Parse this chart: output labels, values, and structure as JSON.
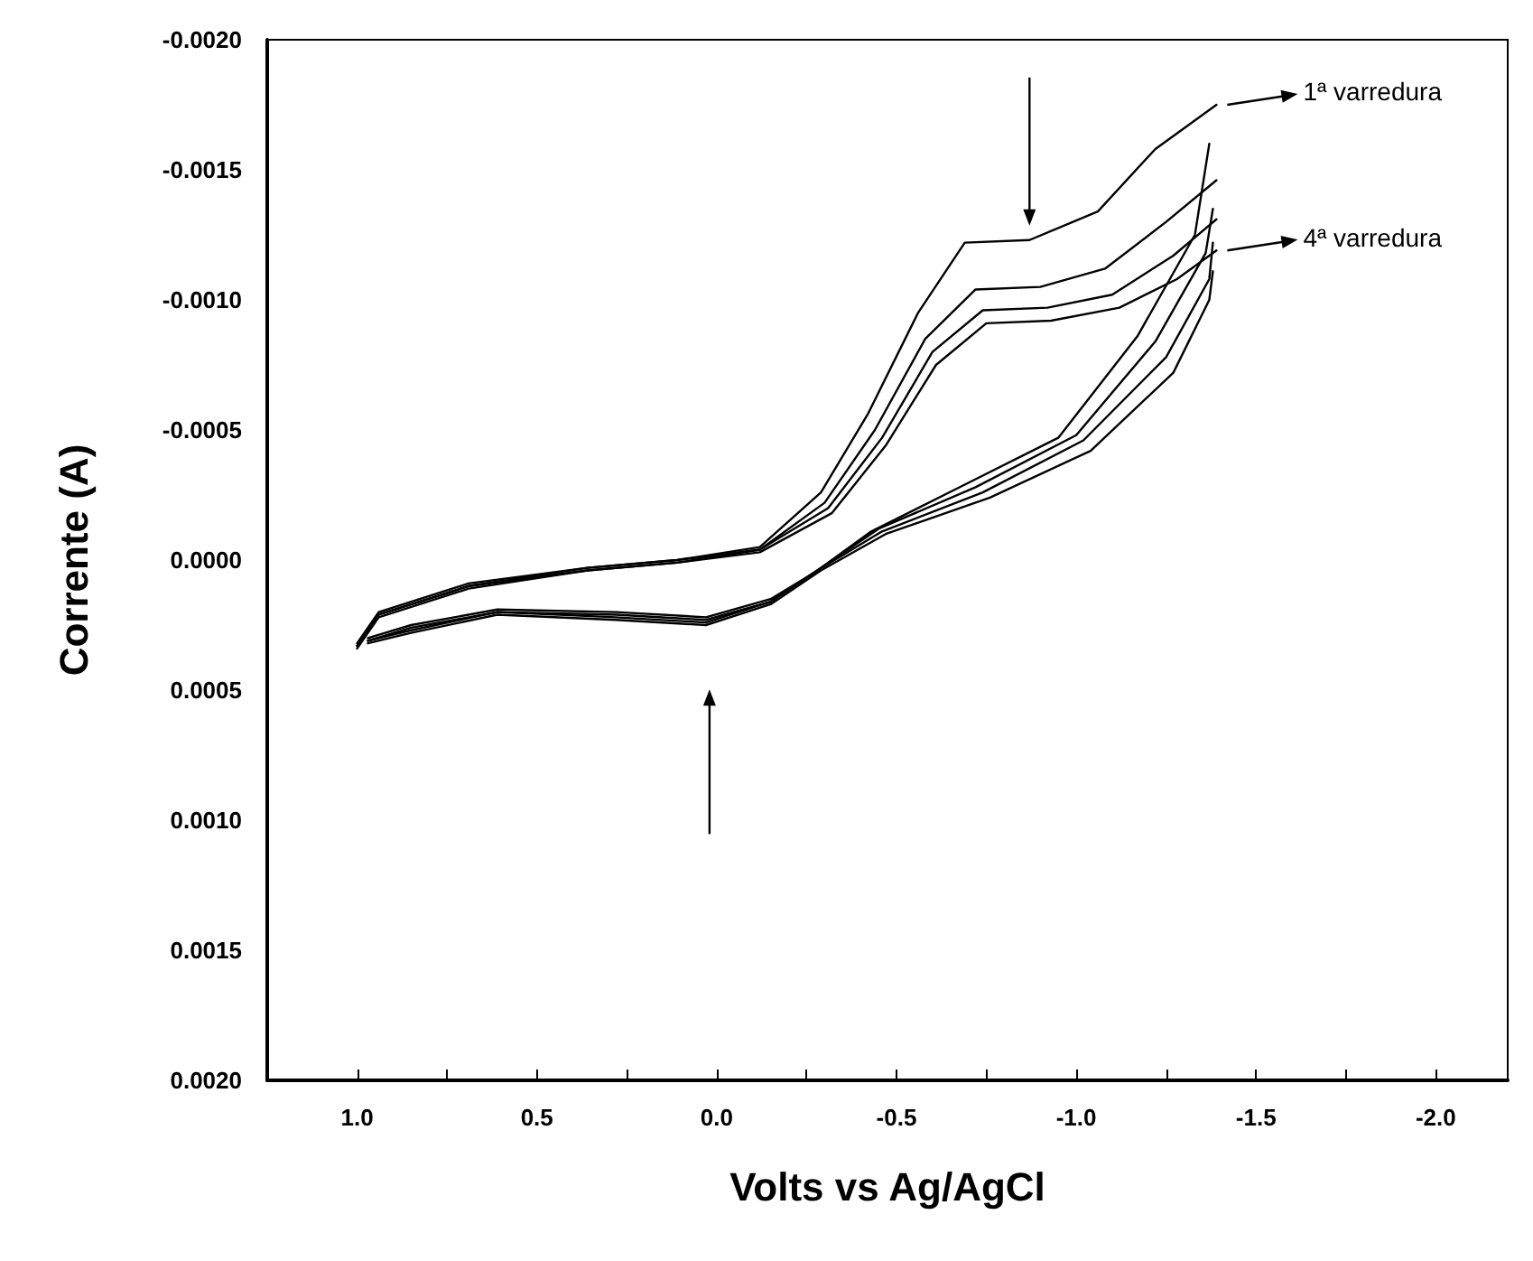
{
  "chart_data": {
    "type": "line",
    "xlabel": "Volts vs Ag/AgCl",
    "ylabel": "Corrente (A)",
    "xlim": [
      1.25,
      -2.2
    ],
    "ylim": [
      0.002,
      -0.002
    ],
    "xticks": [
      {
        "value": 1.0,
        "label": "1.0"
      },
      {
        "value": 0.75,
        "label": null
      },
      {
        "value": 0.5,
        "label": "0.5"
      },
      {
        "value": 0.25,
        "label": null
      },
      {
        "value": 0.0,
        "label": "0.0"
      },
      {
        "value": -0.25,
        "label": null
      },
      {
        "value": -0.5,
        "label": "-0.5"
      },
      {
        "value": -0.75,
        "label": null
      },
      {
        "value": -1.0,
        "label": "-1.0"
      },
      {
        "value": -1.25,
        "label": null
      },
      {
        "value": -1.5,
        "label": "-1.5"
      },
      {
        "value": -1.75,
        "label": null
      },
      {
        "value": -2.0,
        "label": "-2.0"
      }
    ],
    "yticks": [
      {
        "value": -0.002,
        "label": "-0.0020"
      },
      {
        "value": -0.0015,
        "label": "-0.0015"
      },
      {
        "value": -0.001,
        "label": "-0.0010"
      },
      {
        "value": -0.0005,
        "label": "-0.0005"
      },
      {
        "value": 0,
        "label": "0.0000"
      },
      {
        "value": 0.0005,
        "label": "0.0005"
      },
      {
        "value": 0.001,
        "label": "0.0010"
      },
      {
        "value": 0.0015,
        "label": "0.0015"
      },
      {
        "value": 0.002,
        "label": "0.0020"
      }
    ],
    "grid": false,
    "marker": "none",
    "line_style": "solid",
    "annotations": [
      "1ª varredura",
      "4ª varredura"
    ],
    "series": [
      {
        "color": "#000000",
        "x": [
          1.0,
          0.94,
          0.69,
          0.36,
          0.11,
          -0.12,
          -0.29,
          -0.42,
          -0.56,
          -0.69,
          -0.87,
          -1.06,
          -1.22,
          -1.39
        ],
        "values": [
          0.00032,
          0.0002,
          9e-05,
          3e-05,
          0.0,
          -5e-05,
          -0.00026,
          -0.00056,
          -0.00095,
          -0.00122,
          -0.00123,
          -0.00134,
          -0.00158,
          -0.00175
        ]
      },
      {
        "color": "#000000",
        "x": [
          -1.37,
          -1.33,
          -1.17,
          -0.95,
          -0.69,
          -0.43,
          -0.27,
          -0.15,
          0.03,
          0.28,
          0.61,
          0.85,
          0.97
        ],
        "values": [
          -0.0016,
          -0.00125,
          -0.00086,
          -0.00047,
          -0.00029,
          -0.00011,
          5e-05,
          0.00015,
          0.00022,
          0.0002,
          0.00019,
          0.00025,
          0.0003
        ]
      },
      {
        "color": "#000000",
        "x": [
          1.0,
          0.94,
          0.69,
          0.36,
          0.11,
          -0.12,
          -0.3,
          -0.44,
          -0.58,
          -0.72,
          -0.9,
          -1.08,
          -1.25,
          -1.39
        ],
        "values": [
          0.00033,
          0.00021,
          0.0001,
          3e-05,
          0.0,
          -4e-05,
          -0.00022,
          -0.0005,
          -0.00085,
          -0.00104,
          -0.00105,
          -0.00112,
          -0.0013,
          -0.00146
        ]
      },
      {
        "color": "#000000",
        "x": [
          -1.38,
          -1.36,
          -1.22,
          -1.0,
          -0.72,
          -0.45,
          -0.28,
          -0.15,
          0.03,
          0.28,
          0.61,
          0.85,
          0.97
        ],
        "values": [
          -0.00135,
          -0.00118,
          -0.00084,
          -0.00048,
          -0.00028,
          -0.00012,
          4e-05,
          0.00016,
          0.00023,
          0.00021,
          0.0002,
          0.00026,
          0.00031
        ]
      },
      {
        "color": "#000000",
        "x": [
          1.0,
          0.94,
          0.69,
          0.36,
          0.11,
          -0.12,
          -0.31,
          -0.46,
          -0.6,
          -0.74,
          -0.92,
          -1.1,
          -1.27,
          -1.39
        ],
        "values": [
          0.00033,
          0.00021,
          0.0001,
          4e-05,
          1e-05,
          -4e-05,
          -0.0002,
          -0.00047,
          -0.0008,
          -0.00096,
          -0.00097,
          -0.00102,
          -0.00117,
          -0.00131
        ]
      },
      {
        "color": "#000000",
        "x": [
          -1.38,
          -1.37,
          -1.25,
          -1.02,
          -0.74,
          -0.46,
          -0.28,
          -0.15,
          0.03,
          0.28,
          0.61,
          0.85,
          0.97
        ],
        "values": [
          -0.00122,
          -0.00108,
          -0.00078,
          -0.00046,
          -0.00026,
          -0.00011,
          4e-05,
          0.00016,
          0.00024,
          0.00022,
          0.0002,
          0.00027,
          0.00031
        ]
      },
      {
        "color": "#000000",
        "x": [
          1.0,
          0.94,
          0.69,
          0.36,
          0.11,
          -0.12,
          -0.32,
          -0.47,
          -0.61,
          -0.75,
          -0.93,
          -1.12,
          -1.28,
          -1.39
        ],
        "values": [
          0.00034,
          0.00022,
          0.00011,
          4e-05,
          1e-05,
          -3e-05,
          -0.00018,
          -0.00044,
          -0.00075,
          -0.00091,
          -0.00092,
          -0.00097,
          -0.00108,
          -0.00119
        ]
      },
      {
        "color": "#000000",
        "x": [
          -1.38,
          -1.37,
          -1.27,
          -1.04,
          -0.76,
          -0.47,
          -0.29,
          -0.15,
          0.03,
          0.28,
          0.61,
          0.85,
          0.97
        ],
        "values": [
          -0.00111,
          -0.001,
          -0.00072,
          -0.00042,
          -0.00024,
          -0.0001,
          4e-05,
          0.00017,
          0.00025,
          0.00023,
          0.00021,
          0.00028,
          0.00032
        ]
      }
    ]
  }
}
